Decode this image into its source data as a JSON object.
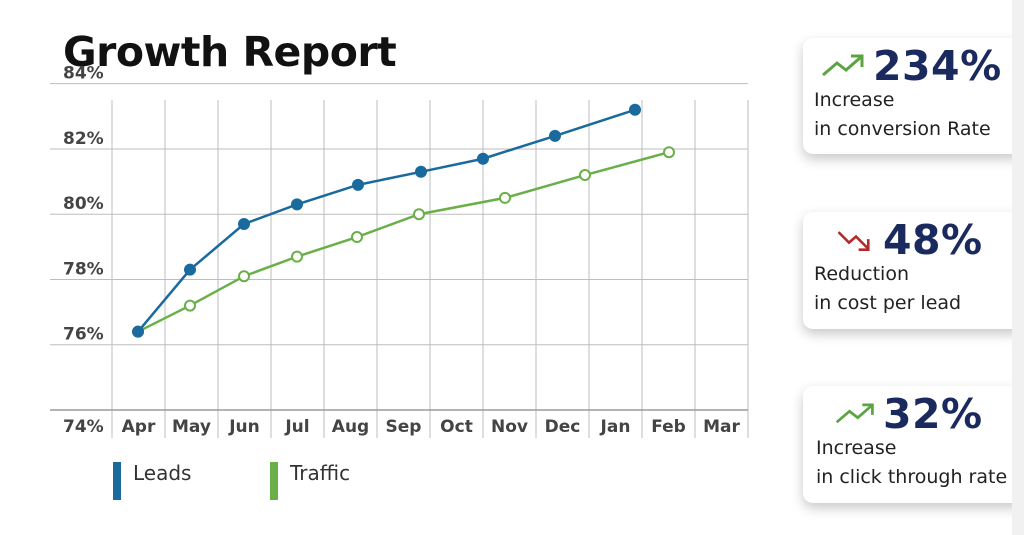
{
  "page": {
    "title": "Growth Report"
  },
  "colors": {
    "leads": "#1a6a9e",
    "traffic": "#6aaf48",
    "up_arrow": "#5aa541",
    "down_arrow": "#b5282b",
    "value": "#1b2a5e"
  },
  "chart_data": {
    "type": "line",
    "title": "Growth Report",
    "categories": [
      "Apr",
      "May",
      "Jun",
      "Jul",
      "Aug",
      "Sep",
      "Oct",
      "Nov",
      "Dec",
      "Jan",
      "Feb",
      "Mar"
    ],
    "y_ticks": [
      "84%",
      "82%",
      "80%",
      "78%",
      "76%",
      "74%"
    ],
    "ylim": [
      74,
      84
    ],
    "grid": true,
    "legend_position": "bottom-left",
    "series": [
      {
        "name": "Leads",
        "color": "#1a6a9e",
        "marker": "filled",
        "values": [
          76.4,
          78.3,
          79.7,
          80.3,
          80.9,
          81.3,
          null,
          81.7,
          82.4,
          83.2,
          null,
          null
        ]
      },
      {
        "name": "Traffic",
        "color": "#6aaf48",
        "marker": "hollow",
        "values": [
          76.4,
          77.2,
          78.1,
          78.7,
          79.3,
          80.0,
          null,
          80.5,
          81.2,
          81.9,
          null,
          null
        ]
      }
    ]
  },
  "cards": [
    {
      "value": "234%",
      "direction": "up",
      "arrow": "trend-up-icon",
      "desc1": "Increase",
      "desc2": "in conversion Rate"
    },
    {
      "value": "48%",
      "direction": "down",
      "arrow": "trend-down-icon",
      "desc1": "Reduction",
      "desc2": "in cost per lead"
    },
    {
      "value": "32%",
      "direction": "up",
      "arrow": "trend-up-icon",
      "desc1": "Increase",
      "desc2": "in click through rate"
    }
  ]
}
